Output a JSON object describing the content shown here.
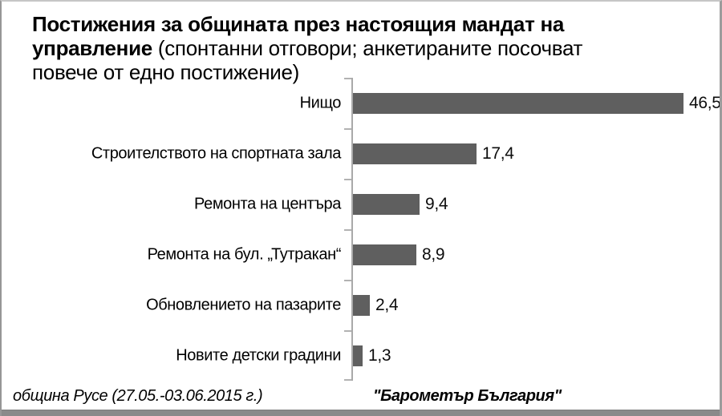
{
  "title": {
    "full": "Постижения за общината през настоящия мандат на управление (спонтанни отговори; анкетираните посочват повече от едно постижение)",
    "line1_bold": "Постижения за общината през настоящия мандат на",
    "line2_bold": "управление",
    "line2_regular": " (спонтанни отговори; анкетираните посочват",
    "line3_regular": "повече от едно постижение)"
  },
  "chart_data": {
    "type": "bar",
    "orientation": "horizontal",
    "title": "Постижения за общината през настоящия мандат на управление (спонтанни отговори; анкетираните посочват повече от едно постижение)",
    "categories": [
      "Нищо",
      "Строителството на спортната зала",
      "Ремонта на центъра",
      "Ремонта на бул. „Тутракан“",
      "Обновлението на пазарите",
      "Новите детски градини"
    ],
    "values": [
      46.5,
      17.4,
      9.4,
      8.9,
      2.4,
      1.3
    ],
    "value_labels": [
      "46,5",
      "17,4",
      "9,4",
      "8,9",
      "2,4",
      "1,3"
    ],
    "xlim": [
      0,
      52
    ],
    "grid": false,
    "legend": false,
    "data_labels": "outside-end",
    "bar_color": "#5f5f5f",
    "axis_color": "#a9a9a9"
  },
  "footer": {
    "left": "община Русе (27.05.-03.06.2015 г.)",
    "right": "\"Барометър България\""
  }
}
